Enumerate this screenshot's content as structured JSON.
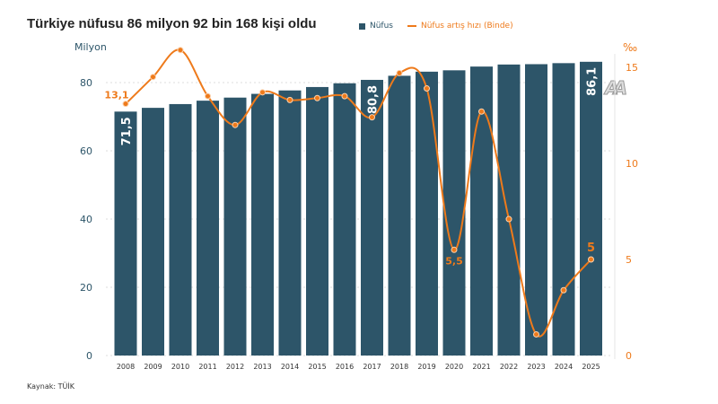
{
  "chart_data": {
    "type": "bar+line",
    "title": "Türkiye nüfusu 86 milyon 92 bin 168 kişi oldu",
    "categories": [
      "2008",
      "2009",
      "2010",
      "2011",
      "2012",
      "2013",
      "2014",
      "2015",
      "2016",
      "2017",
      "2018",
      "2019",
      "2020",
      "2021",
      "2022",
      "2023",
      "2024",
      "2025"
    ],
    "series": [
      {
        "name": "Nüfus",
        "type": "bar",
        "axis": "left",
        "color": "#2d5569",
        "values": [
          71.5,
          72.6,
          73.7,
          74.7,
          75.6,
          76.7,
          77.7,
          78.7,
          79.8,
          80.8,
          82.0,
          83.2,
          83.6,
          84.7,
          85.3,
          85.4,
          85.7,
          86.1
        ]
      },
      {
        "name": "Nüfus artış hızı (Binde)",
        "type": "line",
        "axis": "right",
        "color": "#ee7a1b",
        "values": [
          13.1,
          14.5,
          15.9,
          13.5,
          12.0,
          13.7,
          13.3,
          13.4,
          13.5,
          12.4,
          14.7,
          13.9,
          5.5,
          12.7,
          7.1,
          1.1,
          3.4,
          5.0
        ]
      }
    ],
    "bar_labels": [
      {
        "index": 0,
        "text": "71,5"
      },
      {
        "index": 9,
        "text": "80,8"
      },
      {
        "index": 17,
        "text": "86,1"
      }
    ],
    "line_labels": [
      {
        "index": 0,
        "text": "13,1"
      },
      {
        "index": 12,
        "text": "5,5"
      },
      {
        "index": 17,
        "text": "5"
      }
    ],
    "left_axis": {
      "label": "Milyon",
      "ylim": [
        0,
        100
      ],
      "ticks": [
        "0",
        "20",
        "40",
        "60",
        "80"
      ]
    },
    "right_axis": {
      "label": "‰",
      "ylim": [
        0,
        15.8
      ],
      "ticks": [
        "0",
        "5",
        "10",
        "15"
      ]
    },
    "grid": true,
    "legend": "top"
  },
  "source": "Kaynak: TÜİK",
  "logo": "AA"
}
